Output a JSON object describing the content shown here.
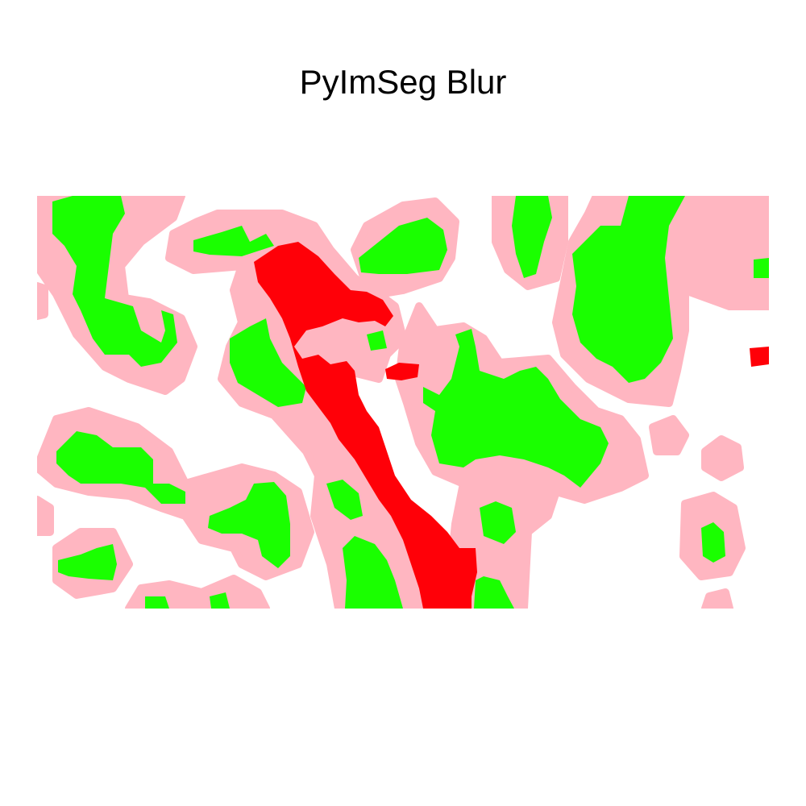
{
  "title": "PyImSeg Blur",
  "colors": {
    "background": "#ffffff",
    "halo": "#ffb6c1",
    "foreground": "#1aff00",
    "highlight": "#ff0008"
  },
  "layers": [
    "halo",
    "foreground",
    "highlight"
  ]
}
